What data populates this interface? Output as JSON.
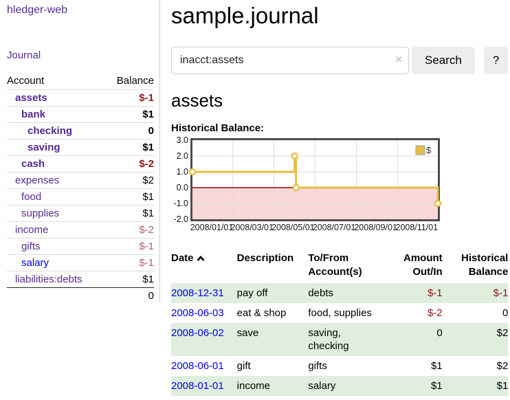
{
  "app_title": "hledger-web",
  "sidebar": {
    "nav_journal": "Journal",
    "accounts": {
      "header_account": "Account",
      "header_balance": "Balance",
      "rows": [
        {
          "name": "assets",
          "balance": "$-1",
          "level": 1,
          "bold": true,
          "name_color": "purple",
          "balance_color": "dark-red"
        },
        {
          "name": "bank",
          "balance": "$1",
          "level": 2,
          "bold": true,
          "name_color": "purple",
          "balance_color": "black"
        },
        {
          "name": "checking",
          "balance": "0",
          "level": 3,
          "bold": true,
          "name_color": "purple",
          "balance_color": "black"
        },
        {
          "name": "saving",
          "balance": "$1",
          "level": 3,
          "bold": true,
          "name_color": "purple",
          "balance_color": "black"
        },
        {
          "name": "cash",
          "balance": "$-2",
          "level": 2,
          "bold": true,
          "name_color": "purple",
          "balance_color": "dark-red"
        },
        {
          "name": "expenses",
          "balance": "$2",
          "level": 1,
          "bold": false,
          "name_color": "purple",
          "balance_color": "black"
        },
        {
          "name": "food",
          "balance": "$1",
          "level": 2,
          "bold": false,
          "name_color": "purple",
          "balance_color": "black"
        },
        {
          "name": "supplies",
          "balance": "$1",
          "level": 2,
          "bold": false,
          "name_color": "purple",
          "balance_color": "black"
        },
        {
          "name": "income",
          "balance": "$-2",
          "level": 1,
          "bold": false,
          "name_color": "purple",
          "balance_color": "soft-red"
        },
        {
          "name": "gifts",
          "balance": "$-1",
          "level": 2,
          "bold": false,
          "name_color": "purple",
          "balance_color": "soft-red"
        },
        {
          "name": "salary",
          "balance": "$-1",
          "level": 2,
          "bold": false,
          "name_color": "blue",
          "balance_color": "soft-red"
        },
        {
          "name": "liabilities:debts",
          "balance": "$1",
          "level": 1,
          "bold": false,
          "name_color": "purple",
          "balance_color": "black"
        }
      ],
      "total": "0"
    }
  },
  "main": {
    "title": "sample.journal",
    "search": {
      "value": "inacct:assets",
      "clear_icon": "×",
      "button": "Search",
      "help_button": "?"
    },
    "account_heading": "assets",
    "chart_heading": "Historical Balance:"
  },
  "chart_data": {
    "type": "line",
    "step": true,
    "title": "Historical Balance",
    "legend": [
      {
        "label": "$",
        "color": "#e9bd3f"
      }
    ],
    "legend_position": "top-right",
    "x_start": "2008/01/01",
    "x_end": "2008/12/31",
    "x_ticks": [
      "2008/01/01",
      "2008/03/01",
      "2008/05/01",
      "2008/07/01",
      "2008/09/01",
      "2008/11/01"
    ],
    "y_ticks": [
      3.0,
      2.0,
      1.0,
      0.0,
      -1.0,
      -2.0
    ],
    "ylim": [
      -2.0,
      3.0
    ],
    "grid": true,
    "series": [
      {
        "name": "$",
        "points": [
          {
            "x": "2008/01/01",
            "y": 1
          },
          {
            "x": "2008/06/01",
            "y": 2
          },
          {
            "x": "2008/06/03",
            "y": 0
          },
          {
            "x": "2008/12/31",
            "y": -1
          }
        ]
      }
    ],
    "line_color": "#e9bd3f",
    "negative_region_color": "#f9d8d8",
    "zero_line_color": "#990000"
  },
  "register": {
    "headers": {
      "date": "Date",
      "description": "Description",
      "accounts": "To/From Account(s)",
      "amount": "Amount Out/In",
      "balance": "Historical Balance"
    },
    "sort_icon": "chevron-up",
    "rows": [
      {
        "date": "2008-12-31",
        "description": "pay off",
        "accounts": "debts",
        "amount": "$-1",
        "balance": "$-1",
        "amount_neg": true,
        "balance_neg": true
      },
      {
        "date": "2008-06-03",
        "description": "eat & shop",
        "accounts": "food, supplies",
        "amount": "$-2",
        "balance": "0",
        "amount_neg": true,
        "balance_neg": false
      },
      {
        "date": "2008-06-02",
        "description": "save",
        "accounts": "saving, checking",
        "amount": "0",
        "balance": "$2",
        "amount_neg": false,
        "balance_neg": false
      },
      {
        "date": "2008-06-01",
        "description": "gift",
        "accounts": "gifts",
        "amount": "$1",
        "balance": "$2",
        "amount_neg": false,
        "balance_neg": false
      },
      {
        "date": "2008-01-01",
        "description": "income",
        "accounts": "salary",
        "amount": "$1",
        "balance": "$1",
        "amount_neg": false,
        "balance_neg": false
      }
    ]
  },
  "colors": {
    "link_purple": "#552a92",
    "link_blue": "#0000ee",
    "negative_dark": "#8b1616",
    "negative_soft": "#b36161",
    "row_stripe_green": "#dfeedd",
    "chart_line_gold": "#e9bd3f",
    "chart_negative_pink": "#f9d8d8",
    "chart_zero_line": "#990000",
    "button_gray": "#ededed"
  }
}
